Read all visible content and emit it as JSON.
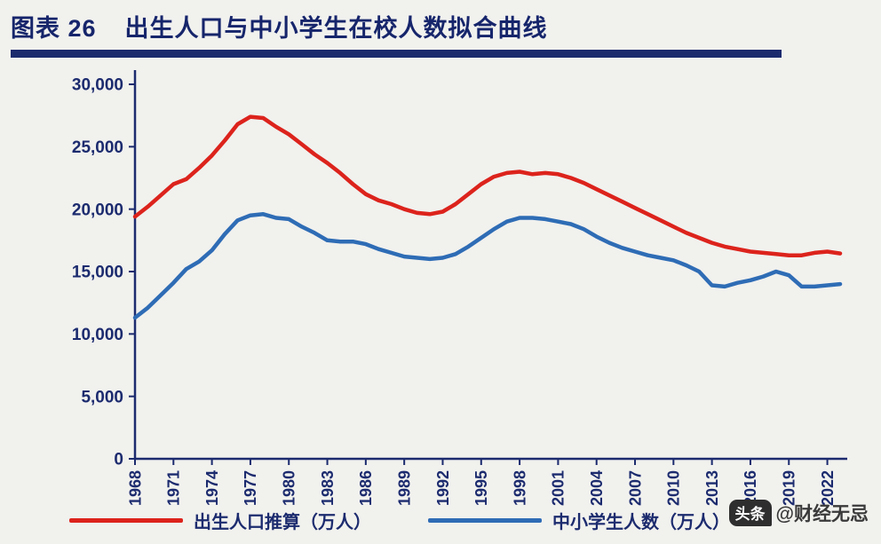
{
  "header": {
    "figure_label": "图表 26",
    "title": "出生人口与中小学生在校人数拟合曲线"
  },
  "watermark": {
    "badge": "头条",
    "handle": "@财经无忌"
  },
  "colors": {
    "title": "#16256b",
    "axis": "#1c2b6e",
    "red_series": "#dc231c",
    "blue_series": "#2e6cb5",
    "background": "#f1f1ee",
    "watermark_text": "#3a3a3a"
  },
  "chart_data": {
    "type": "line",
    "title": "出生人口与中小学生在校人数拟合曲线",
    "grid": false,
    "legend_position": "bottom",
    "ylim": [
      0,
      30000
    ],
    "y_ticks": [
      0,
      5000,
      10000,
      15000,
      20000,
      25000,
      30000
    ],
    "y_tick_labels": [
      "0",
      "5,000",
      "10,000",
      "15,000",
      "20,000",
      "25,000",
      "30,000"
    ],
    "x_tick_years": [
      1968,
      1971,
      1974,
      1977,
      1980,
      1983,
      1986,
      1989,
      1992,
      1995,
      1998,
      2001,
      2004,
      2007,
      2010,
      2013,
      2016,
      2019,
      2022
    ],
    "x_tick_labels": [
      "1968",
      "1971",
      "1974",
      "1977",
      "1980",
      "1983",
      "1986",
      "1989",
      "1992",
      "1995",
      "1998",
      "2001",
      "2004",
      "2007",
      "2010",
      "2013",
      "2016",
      "2019",
      "2022"
    ],
    "years": [
      1968,
      1969,
      1970,
      1971,
      1972,
      1973,
      1974,
      1975,
      1976,
      1977,
      1978,
      1979,
      1980,
      1981,
      1982,
      1983,
      1984,
      1985,
      1986,
      1987,
      1988,
      1989,
      1990,
      1991,
      1992,
      1993,
      1994,
      1995,
      1996,
      1997,
      1998,
      1999,
      2000,
      2001,
      2002,
      2003,
      2004,
      2005,
      2006,
      2007,
      2008,
      2009,
      2010,
      2011,
      2012,
      2013,
      2014,
      2015,
      2016,
      2017,
      2018,
      2019,
      2020,
      2021,
      2022,
      2023
    ],
    "series": [
      {
        "name": "出生人口推算（万人）",
        "color": "#dc231c",
        "values": [
          19400,
          20200,
          21100,
          22000,
          22400,
          23300,
          24300,
          25500,
          26800,
          27400,
          27300,
          26600,
          26000,
          25200,
          24400,
          23700,
          22900,
          22000,
          21200,
          20700,
          20400,
          20000,
          19700,
          19600,
          19800,
          20400,
          21200,
          22000,
          22600,
          22900,
          23000,
          22800,
          22900,
          22800,
          22500,
          22100,
          21600,
          21100,
          20600,
          20100,
          19600,
          19100,
          18600,
          18100,
          17700,
          17300,
          17000,
          16800,
          16600,
          16500,
          16400,
          16300,
          16300,
          16500,
          16600,
          16450
        ]
      },
      {
        "name": "中小学生人数（万人）",
        "color": "#2e6cb5",
        "values": [
          11300,
          12100,
          13100,
          14100,
          15200,
          15800,
          16700,
          18000,
          19100,
          19500,
          19600,
          19300,
          19200,
          18600,
          18100,
          17500,
          17400,
          17400,
          17200,
          16800,
          16500,
          16200,
          16100,
          16000,
          16100,
          16400,
          17000,
          17700,
          18400,
          19000,
          19300,
          19300,
          19200,
          19000,
          18800,
          18400,
          17800,
          17300,
          16900,
          16600,
          16300,
          16100,
          15900,
          15500,
          15000,
          13900,
          13800,
          14100,
          14300,
          14600,
          15000,
          14700,
          13800,
          13800,
          13900,
          14000
        ]
      }
    ]
  }
}
